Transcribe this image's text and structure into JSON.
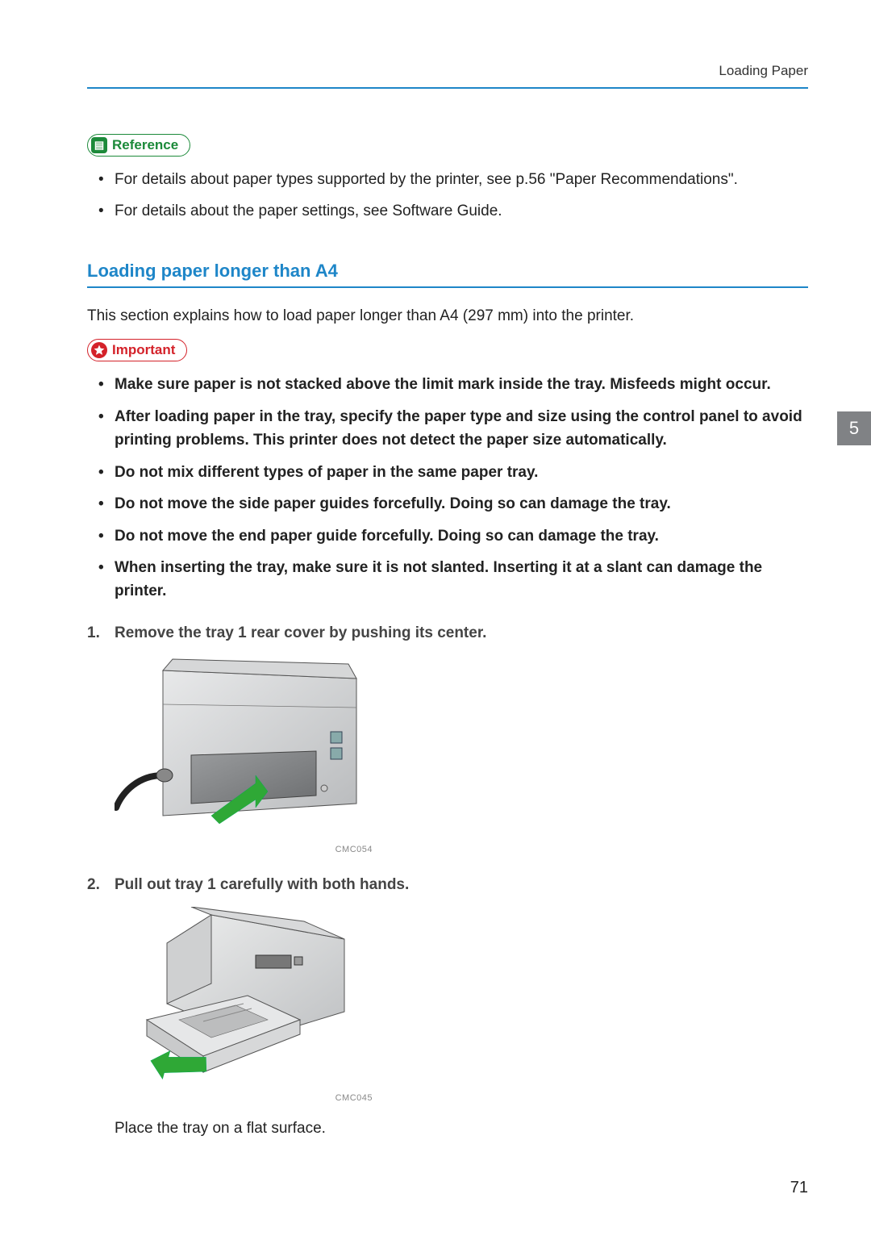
{
  "header": {
    "running_title": "Loading Paper"
  },
  "reference": {
    "label": "Reference",
    "items": [
      "For details about paper types supported by the printer, see p.56 \"Paper Recommendations\".",
      "For details about the paper settings, see Software Guide."
    ]
  },
  "section": {
    "title": "Loading paper longer than A4",
    "intro": "This section explains how to load paper longer than A4 (297 mm) into the printer."
  },
  "important": {
    "label": "Important",
    "items": [
      "Make sure paper is not stacked above the limit mark inside the tray. Misfeeds might occur.",
      "After loading paper in the tray, specify the paper type and size using the control panel to avoid printing problems. This printer does not detect the paper size automatically.",
      "Do not mix different types of paper in the same paper tray.",
      "Do not move the side paper guides forcefully. Doing so can damage the tray.",
      "Do not move the end paper guide forcefully. Doing so can damage the tray.",
      "When inserting the tray, make sure it is not slanted. Inserting it at a slant can damage the printer."
    ]
  },
  "steps": [
    {
      "title": "Remove the tray 1 rear cover by pushing its center.",
      "figure_caption": "CMC054",
      "figure_width": 320,
      "figure_caption_width": 320,
      "note": null
    },
    {
      "title": "Pull out tray 1 carefully with both hands.",
      "figure_caption": "CMC045",
      "figure_width": 300,
      "figure_caption_width": 320,
      "note": "Place the tray on a flat surface."
    }
  ],
  "chapter_tab": "5",
  "page_number": "71",
  "colors": {
    "accent_blue": "#1e86c8",
    "reference_green": "#1c8a3a",
    "important_red": "#d4222a",
    "tab_gray": "#808285",
    "arrow_green": "#2fa836"
  }
}
